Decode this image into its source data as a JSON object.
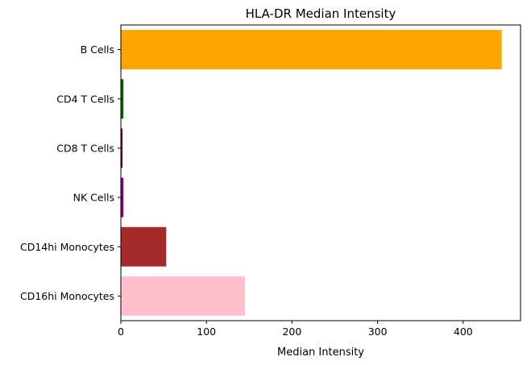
{
  "chart_data": {
    "type": "bar",
    "orientation": "horizontal",
    "title": "HLA-DR Median Intensity",
    "xlabel": "Median Intensity",
    "ylabel": "",
    "xlim": [
      0,
      467
    ],
    "xticks": [
      0,
      100,
      200,
      300,
      400
    ],
    "grid": false,
    "categories": [
      "B Cells",
      "CD4 T Cells",
      "CD8 T Cells",
      "NK Cells",
      "CD14hi Monocytes",
      "CD16hi Monocytes"
    ],
    "values": [
      445,
      3,
      2,
      3,
      53,
      145
    ],
    "colors": [
      "#ffa500",
      "#006400",
      "#8b0000",
      "#800080",
      "#a52a2a",
      "#ffc0cb"
    ]
  }
}
